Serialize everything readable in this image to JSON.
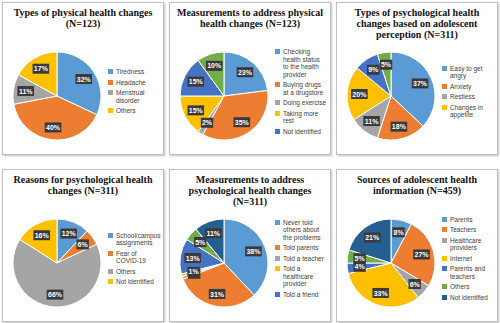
{
  "chart_data": [
    {
      "type": "pie",
      "title": "Types of physical health changes (N=123)",
      "categories": [
        "Tiredness",
        "Headache",
        "Menstrual disorder",
        "Others"
      ],
      "values": [
        32,
        40,
        11,
        17
      ],
      "value_labels": [
        "32%",
        "40%",
        "11%",
        "17%"
      ],
      "colors": [
        "#5b9bd5",
        "#ed7d31",
        "#a5a5a5",
        "#ffc000"
      ],
      "data_labels": true,
      "legend": "right"
    },
    {
      "type": "pie",
      "title": "Measurements to address physical health changes (N=123)",
      "categories": [
        "Checking health status to the health provider",
        "Buying drugs at a drugstore",
        "Doing exercise",
        "Taking more rest",
        "Not identified",
        null
      ],
      "values": [
        23,
        35,
        2,
        15,
        15,
        10
      ],
      "value_labels": [
        "23%",
        "35%",
        "2%",
        "15%",
        "15%",
        "10%"
      ],
      "colors": [
        "#5b9bd5",
        "#ed7d31",
        "#a5a5a5",
        "#ffc000",
        "#4472c4",
        "#70ad47"
      ],
      "data_labels": true,
      "legend": "right"
    },
    {
      "type": "pie",
      "title": "Types of psychological health changes based on adolescent perception (N=311)",
      "categories": [
        "Easy to get angry",
        "Anxiety",
        "Restless",
        "Changes in appetite",
        null,
        null
      ],
      "values": [
        37,
        18,
        11,
        20,
        9,
        5
      ],
      "value_labels": [
        "37%",
        "18%",
        "11%",
        "20%",
        "9%",
        "5%"
      ],
      "colors": [
        "#5b9bd5",
        "#ed7d31",
        "#a5a5a5",
        "#ffc000",
        "#4472c4",
        "#70ad47"
      ],
      "data_labels": true,
      "legend": "right"
    },
    {
      "type": "pie",
      "title": "Reasons for psychological health changes (N=311)",
      "categories": [
        "School/campus assignments",
        "Fear of COVID-19",
        "Others",
        "Not identified"
      ],
      "values": [
        12,
        6,
        66,
        16
      ],
      "value_labels": [
        "12%",
        "6%",
        "66%",
        "16%"
      ],
      "colors": [
        "#5b9bd5",
        "#ed7d31",
        "#a5a5a5",
        "#ffc000"
      ],
      "data_labels": true,
      "legend": "right"
    },
    {
      "type": "pie",
      "title": "Measurements to address psychological health changes (N=311)",
      "categories": [
        "Never told others about the problems",
        "Told parents",
        "Told a teacher",
        "Told a healthcare provider",
        "Told a friend",
        null,
        null
      ],
      "values": [
        38,
        31,
        1,
        1,
        13,
        5,
        11
      ],
      "value_labels": [
        "38%",
        "31%",
        "1%",
        "1%",
        "13%",
        "5%",
        "11%"
      ],
      "colors": [
        "#5b9bd5",
        "#ed7d31",
        "#a5a5a5",
        "#ffc000",
        "#4472c4",
        "#70ad47",
        "#255e91"
      ],
      "data_labels": true,
      "legend": "right"
    },
    {
      "type": "pie",
      "title": "Sources of adolescent health information (N=459)",
      "categories": [
        "Parents",
        "Teachers",
        "Healthcare providers",
        "Internet",
        "Parents and teachers",
        "Others",
        "Not identified"
      ],
      "values": [
        8,
        27,
        6,
        33,
        4,
        5,
        21
      ],
      "value_labels": [
        "8%",
        "27%",
        "6%",
        "33%",
        "4%",
        "5%",
        "21%"
      ],
      "colors": [
        "#5b9bd5",
        "#ed7d31",
        "#a5a5a5",
        "#ffc000",
        "#4472c4",
        "#70ad47",
        "#255e91"
      ],
      "data_labels": true,
      "legend": "right"
    }
  ]
}
